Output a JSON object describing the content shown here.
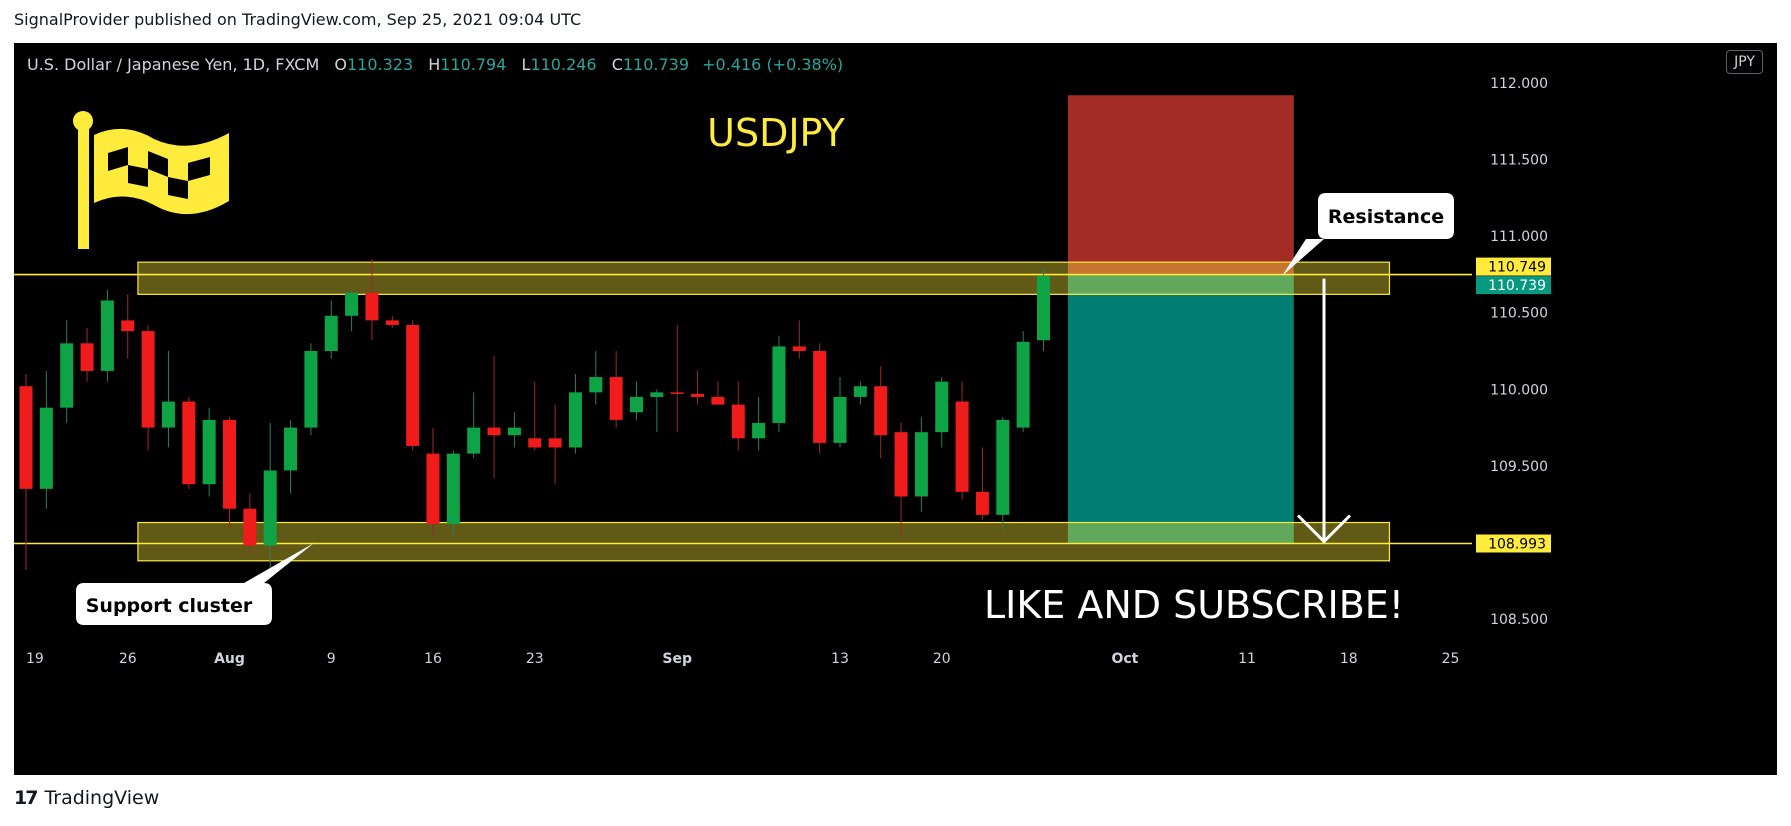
{
  "header": {
    "published": "SignalProvider published on TradingView.com, Sep 25, 2021 09:04 UTC"
  },
  "legend": {
    "symbol": "U.S. Dollar / Japanese Yen, 1D, FXCM",
    "o_label": "O",
    "o_value": "110.323",
    "h_label": "H",
    "h_value": "110.794",
    "l_label": "L",
    "l_value": "110.246",
    "c_label": "C",
    "c_value": "110.739",
    "change": "+0.416 (+0.38%)"
  },
  "currency": "JPY",
  "footer": {
    "brand": "TradingView",
    "logo_text": "17"
  },
  "chart_data": {
    "type": "candlestick",
    "title": "USDJPY",
    "ylim": [
      108.2,
      112.15
    ],
    "y_ticks": [
      "112.000",
      "111.500",
      "111.000",
      "110.500",
      "110.000",
      "109.500",
      "108.500"
    ],
    "x_ticks": [
      {
        "label": "19",
        "index": 0
      },
      {
        "label": "26",
        "index": 5
      },
      {
        "label": "Aug",
        "index": 10
      },
      {
        "label": "9",
        "index": 15
      },
      {
        "label": "16",
        "index": 20
      },
      {
        "label": "23",
        "index": 25
      },
      {
        "label": "Sep",
        "index": 32
      },
      {
        "label": "13",
        "index": 40
      },
      {
        "label": "20",
        "index": 45
      },
      {
        "label": "Oct",
        "index": 54
      },
      {
        "label": "11",
        "index": 60
      },
      {
        "label": "18",
        "index": 65
      },
      {
        "label": "25",
        "index": 70
      }
    ],
    "candles": [
      {
        "o": 110.02,
        "h": 110.1,
        "l": 108.82,
        "c": 109.35
      },
      {
        "o": 109.35,
        "h": 110.12,
        "l": 109.22,
        "c": 109.88
      },
      {
        "o": 109.88,
        "h": 110.45,
        "l": 109.78,
        "c": 110.3
      },
      {
        "o": 110.3,
        "h": 110.4,
        "l": 110.05,
        "c": 110.12
      },
      {
        "o": 110.12,
        "h": 110.65,
        "l": 110.05,
        "c": 110.58
      },
      {
        "o": 110.45,
        "h": 110.62,
        "l": 110.2,
        "c": 110.38
      },
      {
        "o": 110.38,
        "h": 110.42,
        "l": 109.6,
        "c": 109.75
      },
      {
        "o": 109.75,
        "h": 110.25,
        "l": 109.62,
        "c": 109.92
      },
      {
        "o": 109.92,
        "h": 109.95,
        "l": 109.35,
        "c": 109.38
      },
      {
        "o": 109.38,
        "h": 109.88,
        "l": 109.3,
        "c": 109.8
      },
      {
        "o": 109.8,
        "h": 109.82,
        "l": 109.1,
        "c": 109.22
      },
      {
        "o": 109.22,
        "h": 109.32,
        "l": 108.92,
        "c": 108.98
      },
      {
        "o": 108.98,
        "h": 109.78,
        "l": 108.82,
        "c": 109.47
      },
      {
        "o": 109.47,
        "h": 109.8,
        "l": 109.32,
        "c": 109.75
      },
      {
        "o": 109.75,
        "h": 110.3,
        "l": 109.7,
        "c": 110.25
      },
      {
        "o": 110.25,
        "h": 110.58,
        "l": 110.2,
        "c": 110.48
      },
      {
        "o": 110.48,
        "h": 110.65,
        "l": 110.38,
        "c": 110.63
      },
      {
        "o": 110.63,
        "h": 110.85,
        "l": 110.32,
        "c": 110.45
      },
      {
        "o": 110.45,
        "h": 110.48,
        "l": 110.4,
        "c": 110.42
      },
      {
        "o": 110.42,
        "h": 110.45,
        "l": 109.6,
        "c": 109.63
      },
      {
        "o": 109.58,
        "h": 109.75,
        "l": 109.05,
        "c": 109.12
      },
      {
        "o": 109.12,
        "h": 109.6,
        "l": 109.05,
        "c": 109.58
      },
      {
        "o": 109.58,
        "h": 109.98,
        "l": 109.55,
        "c": 109.75
      },
      {
        "o": 109.75,
        "h": 110.22,
        "l": 109.42,
        "c": 109.7
      },
      {
        "o": 109.7,
        "h": 109.85,
        "l": 109.62,
        "c": 109.75
      },
      {
        "o": 109.68,
        "h": 110.05,
        "l": 109.6,
        "c": 109.62
      },
      {
        "o": 109.68,
        "h": 109.9,
        "l": 109.38,
        "c": 109.62
      },
      {
        "o": 109.62,
        "h": 110.1,
        "l": 109.58,
        "c": 109.98
      },
      {
        "o": 109.98,
        "h": 110.25,
        "l": 109.9,
        "c": 110.08
      },
      {
        "o": 110.08,
        "h": 110.25,
        "l": 109.75,
        "c": 109.8
      },
      {
        "o": 109.85,
        "h": 110.05,
        "l": 109.8,
        "c": 109.95
      },
      {
        "o": 109.95,
        "h": 110.0,
        "l": 109.72,
        "c": 109.98
      },
      {
        "o": 109.98,
        "h": 110.42,
        "l": 109.72,
        "c": 109.97
      },
      {
        "o": 109.97,
        "h": 110.12,
        "l": 109.9,
        "c": 109.95
      },
      {
        "o": 109.95,
        "h": 110.05,
        "l": 109.9,
        "c": 109.9
      },
      {
        "o": 109.9,
        "h": 110.05,
        "l": 109.6,
        "c": 109.68
      },
      {
        "o": 109.68,
        "h": 109.95,
        "l": 109.6,
        "c": 109.78
      },
      {
        "o": 109.78,
        "h": 110.35,
        "l": 109.72,
        "c": 110.28
      },
      {
        "o": 110.28,
        "h": 110.45,
        "l": 110.2,
        "c": 110.25
      },
      {
        "o": 110.25,
        "h": 110.3,
        "l": 109.58,
        "c": 109.65
      },
      {
        "o": 109.65,
        "h": 110.08,
        "l": 109.62,
        "c": 109.95
      },
      {
        "o": 109.95,
        "h": 110.05,
        "l": 109.9,
        "c": 110.02
      },
      {
        "o": 110.02,
        "h": 110.15,
        "l": 109.55,
        "c": 109.7
      },
      {
        "o": 109.72,
        "h": 109.78,
        "l": 109.05,
        "c": 109.3
      },
      {
        "o": 109.3,
        "h": 109.82,
        "l": 109.2,
        "c": 109.72
      },
      {
        "o": 109.72,
        "h": 110.08,
        "l": 109.62,
        "c": 110.05
      },
      {
        "o": 109.92,
        "h": 110.05,
        "l": 109.28,
        "c": 109.33
      },
      {
        "o": 109.33,
        "h": 109.62,
        "l": 109.15,
        "c": 109.18
      },
      {
        "o": 109.18,
        "h": 109.82,
        "l": 109.08,
        "c": 109.8
      },
      {
        "o": 109.75,
        "h": 110.38,
        "l": 109.72,
        "c": 110.31
      },
      {
        "o": 110.32,
        "h": 110.79,
        "l": 110.25,
        "c": 110.74
      }
    ],
    "zones": [
      {
        "name": "resistance-zone",
        "from": 110.62,
        "to": 110.83,
        "start_index": 5.5,
        "end_index": 67
      },
      {
        "name": "support-zone",
        "from": 108.88,
        "to": 109.13,
        "start_index": 5.5,
        "end_index": 67
      }
    ],
    "horizontal_lines": [
      {
        "name": "resistance-line",
        "value": 110.749
      },
      {
        "name": "support-line",
        "value": 108.993
      }
    ],
    "position": {
      "entry": 110.749,
      "stop": 111.92,
      "target": 108.993,
      "start_index": 51.2,
      "end_index": 62.3,
      "stop_color": "#b2302a",
      "target_color": "#00897b"
    },
    "price_labels": [
      {
        "value": "110.749",
        "bg": "#ffeb3b",
        "fg": "#000000"
      },
      {
        "value": "110.739",
        "bg": "#089981",
        "fg": "#ffffff"
      },
      {
        "value": "108.993",
        "bg": "#ffeb3b",
        "fg": "#000000"
      }
    ],
    "annotations": {
      "resistance": "Resistance",
      "support": "Support cluster",
      "cta": "LIKE AND SUBSCRIBE!"
    },
    "colors": {
      "up": "#089981",
      "up_body": "#0ea345",
      "down": "#f01b1b",
      "wick": "#707070",
      "title": "#ffeb3b",
      "line": "#ffeb3b"
    }
  }
}
